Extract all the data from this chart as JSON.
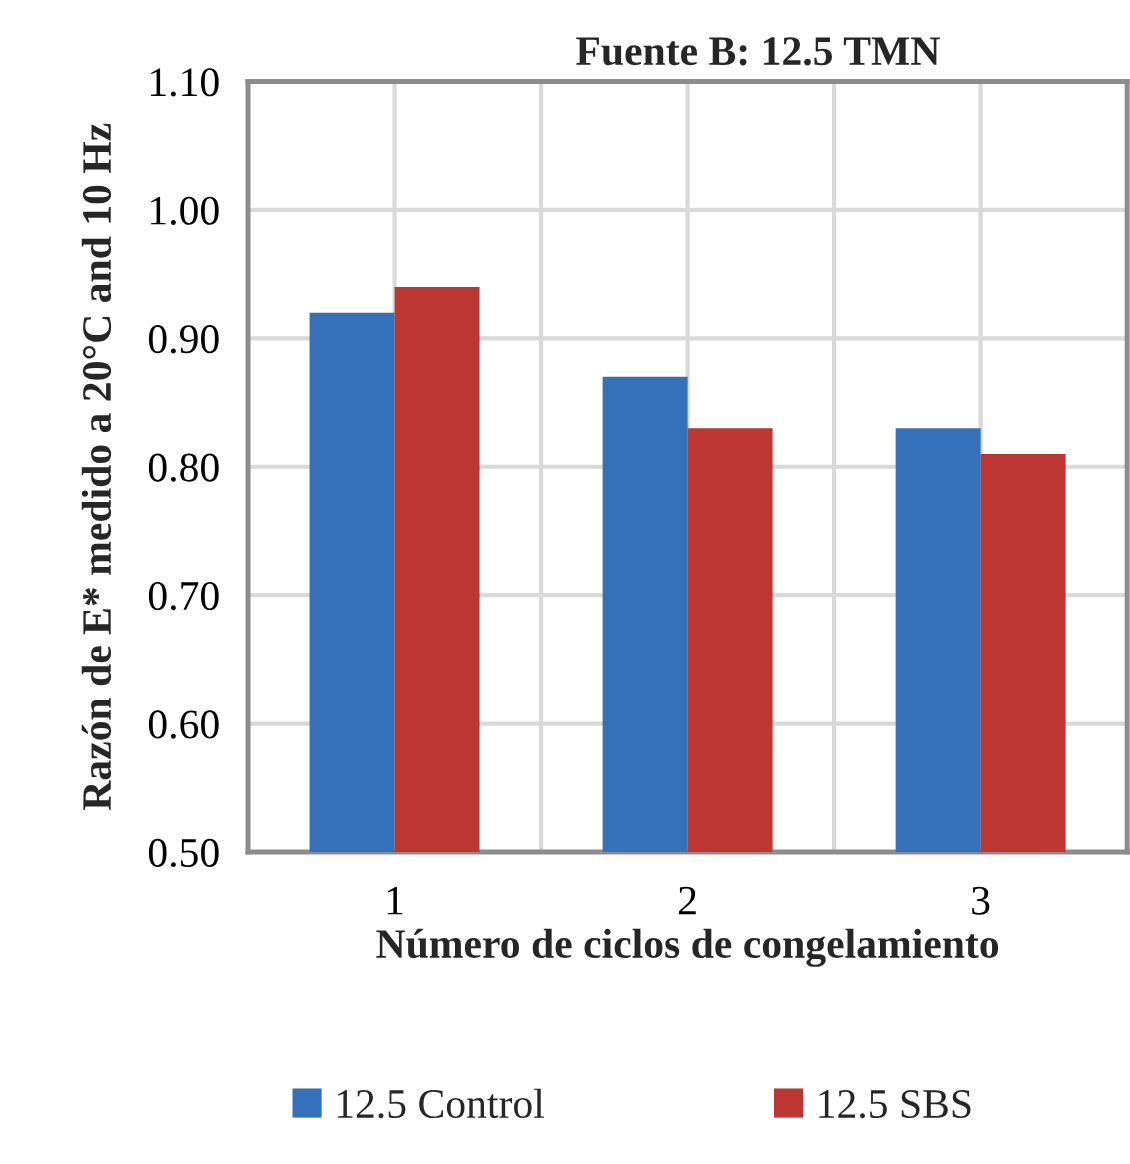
{
  "chart_data": {
    "type": "bar",
    "title": "Fuente B: 12.5 TMN",
    "xlabel": "Número de ciclos de congelamiento",
    "ylabel": "Razón de E* medido a 20°C and 10 Hz",
    "categories": [
      "1",
      "2",
      "3"
    ],
    "series": [
      {
        "name": "12.5 Control",
        "color": "#3471ba",
        "values": [
          0.92,
          0.87,
          0.83
        ]
      },
      {
        "name": "12.5 SBS",
        "color": "#bd3632",
        "values": [
          0.94,
          0.83,
          0.81
        ]
      }
    ],
    "ylim": [
      0.5,
      1.1
    ],
    "yticks": [
      {
        "value": 0.5,
        "label": "0.50"
      },
      {
        "value": 0.6,
        "label": "0.60"
      },
      {
        "value": 0.7,
        "label": "0.70"
      },
      {
        "value": 0.8,
        "label": "0.80"
      },
      {
        "value": 0.9,
        "label": "0.90"
      },
      {
        "value": 1.0,
        "label": "1.00"
      },
      {
        "value": 1.1,
        "label": "1.10"
      }
    ],
    "grid": true,
    "legend": "bottom"
  }
}
